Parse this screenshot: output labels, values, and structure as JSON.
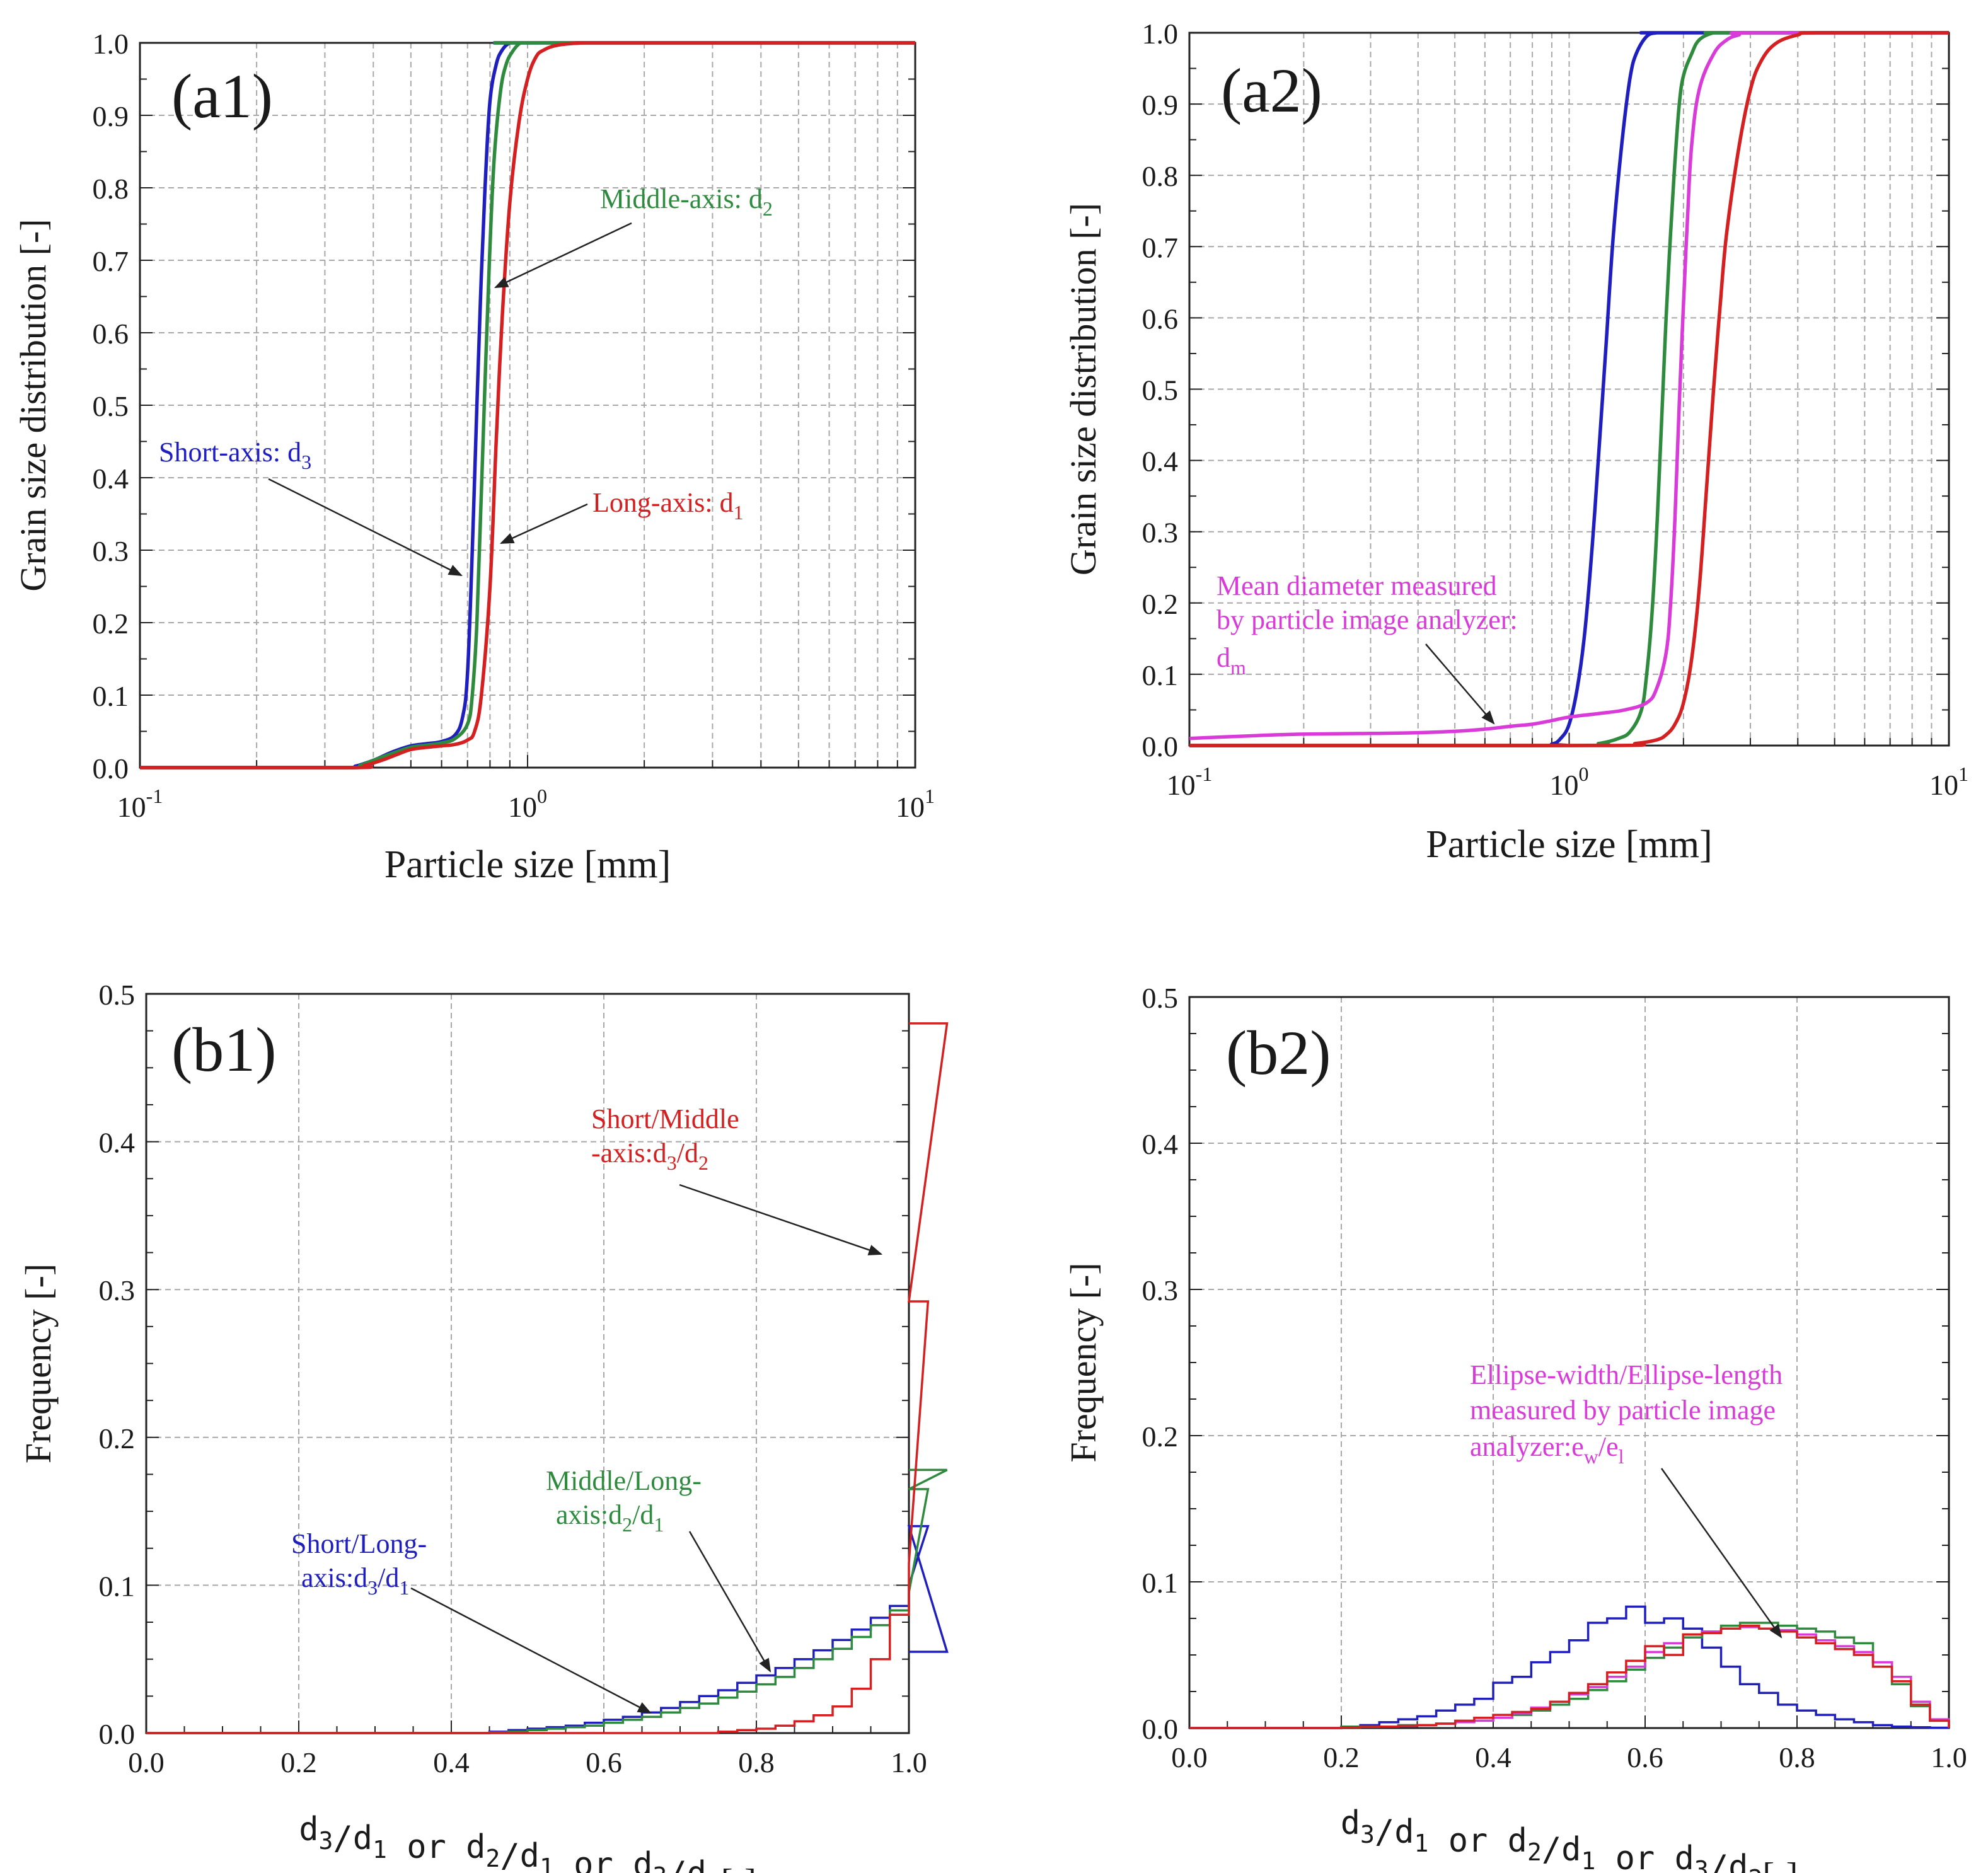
{
  "chart_data": [
    {
      "id": "a1",
      "type": "line",
      "panel_label": "(a1)",
      "xlabel": "Particle size [mm]",
      "ylabel": "Grain size distribution [-]",
      "xscale": "log",
      "xlim": [
        0.1,
        10
      ],
      "ylim": [
        0,
        1.0
      ],
      "grid": true,
      "xticks": [
        {
          "value": 0.1,
          "base": "10",
          "exp": "-1"
        },
        {
          "value": 1,
          "base": "10",
          "exp": "0"
        },
        {
          "value": 10,
          "base": "10",
          "exp": "1"
        }
      ],
      "yticks": [
        "0.0",
        "0.1",
        "0.2",
        "0.3",
        "0.4",
        "0.5",
        "0.6",
        "0.7",
        "0.8",
        "0.9",
        "1.0"
      ],
      "series": [
        {
          "name": "Short-axis: d3",
          "color": "#1f1fbf",
          "x": [
            0.1,
            0.33,
            0.36,
            0.4,
            0.45,
            0.5,
            0.55,
            0.6,
            0.65,
            0.68,
            0.7,
            0.72,
            0.74,
            0.76,
            0.78,
            0.8,
            0.83,
            0.86,
            0.9,
            0.95,
            1.0,
            10
          ],
          "y": [
            0,
            0,
            0.002,
            0.01,
            0.022,
            0.03,
            0.033,
            0.036,
            0.045,
            0.07,
            0.13,
            0.3,
            0.5,
            0.68,
            0.82,
            0.92,
            0.97,
            0.99,
            1.0,
            1.0,
            1.0,
            1.0
          ]
        },
        {
          "name": "Middle-axis: d2",
          "color": "#2e8b3e",
          "x": [
            0.1,
            0.34,
            0.37,
            0.4,
            0.45,
            0.5,
            0.55,
            0.6,
            0.65,
            0.7,
            0.72,
            0.74,
            0.76,
            0.78,
            0.8,
            0.82,
            0.85,
            0.88,
            0.92,
            0.96,
            1.0,
            10
          ],
          "y": [
            0,
            0,
            0.003,
            0.01,
            0.02,
            0.028,
            0.031,
            0.034,
            0.04,
            0.06,
            0.1,
            0.2,
            0.38,
            0.56,
            0.72,
            0.84,
            0.93,
            0.97,
            0.99,
            1.0,
            1.0,
            1.0
          ]
        },
        {
          "name": "Long-axis: d1",
          "color": "#d42020",
          "x": [
            0.1,
            0.35,
            0.38,
            0.42,
            0.46,
            0.5,
            0.55,
            0.6,
            0.65,
            0.7,
            0.73,
            0.76,
            0.8,
            0.83,
            0.86,
            0.9,
            0.95,
            1.0,
            1.05,
            1.1,
            1.2,
            1.4,
            1.6,
            10
          ],
          "y": [
            0,
            0,
            0.003,
            0.01,
            0.018,
            0.025,
            0.028,
            0.03,
            0.032,
            0.038,
            0.05,
            0.1,
            0.25,
            0.45,
            0.62,
            0.78,
            0.89,
            0.95,
            0.98,
            0.99,
            0.997,
            1.0,
            1.0,
            1.0
          ]
        }
      ],
      "annotations": [
        {
          "label": "Middle-axis: ",
          "sub": "2",
          "color": "#2e8b3e"
        },
        {
          "label": "Short-axis: ",
          "sub": "3",
          "color": "#1f1fbf"
        },
        {
          "label": "Long-axis: ",
          "sub": "1",
          "color": "#d42020"
        }
      ]
    },
    {
      "id": "a2",
      "type": "line",
      "panel_label": "(a2)",
      "xlabel": "Particle size [mm]",
      "ylabel": "Grain size distribution [-]",
      "xscale": "log",
      "xlim": [
        0.1,
        10
      ],
      "ylim": [
        0,
        1.0
      ],
      "grid": true,
      "xticks": [
        {
          "value": 0.1,
          "base": "10",
          "exp": "-1"
        },
        {
          "value": 1,
          "base": "10",
          "exp": "0"
        },
        {
          "value": 10,
          "base": "10",
          "exp": "1"
        }
      ],
      "yticks": [
        "0.0",
        "0.1",
        "0.2",
        "0.3",
        "0.4",
        "0.5",
        "0.6",
        "0.7",
        "0.8",
        "0.9",
        "1.0"
      ],
      "series": [
        {
          "color": "#1f1fbf",
          "x": [
            0.1,
            0.8,
            0.9,
            0.95,
            1.0,
            1.05,
            1.1,
            1.15,
            1.2,
            1.25,
            1.3,
            1.35,
            1.4,
            1.45,
            1.5,
            1.6,
            1.7,
            1.8,
            10
          ],
          "y": [
            0,
            0,
            0.002,
            0.01,
            0.03,
            0.08,
            0.16,
            0.28,
            0.42,
            0.56,
            0.7,
            0.8,
            0.88,
            0.94,
            0.97,
            0.995,
            1.0,
            1.0,
            1.0
          ]
        },
        {
          "color": "#2e8b3e",
          "x": [
            0.1,
            1.0,
            1.2,
            1.35,
            1.45,
            1.55,
            1.6,
            1.65,
            1.7,
            1.75,
            1.8,
            1.85,
            1.9,
            1.95,
            2.0,
            2.1,
            2.2,
            2.4,
            2.6,
            10
          ],
          "y": [
            0,
            0,
            0.003,
            0.01,
            0.02,
            0.05,
            0.1,
            0.18,
            0.3,
            0.45,
            0.6,
            0.72,
            0.82,
            0.9,
            0.94,
            0.97,
            0.99,
            1.0,
            1.0,
            1.0
          ]
        },
        {
          "color": "#d93bd9",
          "x": [
            0.1,
            0.15,
            0.2,
            0.3,
            0.4,
            0.5,
            0.6,
            0.7,
            0.8,
            0.9,
            1.0,
            1.2,
            1.4,
            1.6,
            1.7,
            1.8,
            1.85,
            1.9,
            1.95,
            2.0,
            2.05,
            2.1,
            2.2,
            2.4,
            2.6,
            2.8,
            3.0,
            10
          ],
          "y": [
            0.01,
            0.014,
            0.016,
            0.017,
            0.018,
            0.02,
            0.023,
            0.027,
            0.03,
            0.035,
            0.04,
            0.045,
            0.05,
            0.06,
            0.08,
            0.13,
            0.2,
            0.32,
            0.48,
            0.62,
            0.74,
            0.84,
            0.92,
            0.97,
            0.99,
            0.997,
            1.0,
            1.0
          ]
        },
        {
          "color": "#d42020",
          "x": [
            0.1,
            1.2,
            1.5,
            1.7,
            1.8,
            1.9,
            2.0,
            2.1,
            2.2,
            2.3,
            2.4,
            2.5,
            2.6,
            2.8,
            3.0,
            3.2,
            3.5,
            4.0,
            4.5,
            10
          ],
          "y": [
            0,
            0,
            0.003,
            0.008,
            0.015,
            0.03,
            0.06,
            0.12,
            0.22,
            0.36,
            0.5,
            0.62,
            0.72,
            0.84,
            0.92,
            0.96,
            0.985,
            0.997,
            1.0,
            1.0
          ]
        }
      ],
      "annotations": [
        {
          "lines": [
            "Mean diameter measured",
            "by particle image analyzer:"
          ],
          "sym": "d",
          "sub": "m",
          "color": "#d93bd9"
        }
      ]
    },
    {
      "id": "b1",
      "type": "step",
      "panel_label": "(b1)",
      "ylabel": "Frequency [-]",
      "xlim": [
        0,
        1.0
      ],
      "ylim": [
        0,
        0.5
      ],
      "grid": true,
      "bin_width": 0.025,
      "xticks": [
        "0.0",
        "0.2",
        "0.4",
        "0.6",
        "0.8",
        "1.0"
      ],
      "yticks": [
        "0.0",
        "0.1",
        "0.2",
        "0.3",
        "0.4",
        "0.5"
      ],
      "series": [
        {
          "name": "Short/Long-axis:d3/d1",
          "color": "#1f1fbf",
          "bin_start": 0.45,
          "values": [
            0.001,
            0.002,
            0.003,
            0.004,
            0.005,
            0.007,
            0.009,
            0.011,
            0.014,
            0.017,
            0.021,
            0.025,
            0.029,
            0.034,
            0.039,
            0.044,
            0.05,
            0.056,
            0.063,
            0.07,
            0.078,
            0.086,
            0.1,
            0.14,
            0.055
          ]
        },
        {
          "name": "Middle/Long-axis:d2/d1",
          "color": "#2e8b3e",
          "bin_start": 0.45,
          "values": [
            0.0005,
            0.001,
            0.002,
            0.003,
            0.004,
            0.005,
            0.007,
            0.009,
            0.011,
            0.014,
            0.017,
            0.02,
            0.024,
            0.028,
            0.033,
            0.038,
            0.044,
            0.05,
            0.057,
            0.065,
            0.073,
            0.083,
            0.095,
            0.165,
            0.178
          ]
        },
        {
          "name": "Short/Middle-axis:d3/d2",
          "color": "#d42020",
          "bin_start": 0.75,
          "values": [
            0.001,
            0.002,
            0.003,
            0.005,
            0.008,
            0.012,
            0.018,
            0.03,
            0.05,
            0.08,
            0.115,
            0.292,
            0.48
          ]
        }
      ],
      "annotations": [
        {
          "line1": "Short/Middle",
          "line2_pre": "-axis:",
          "color": "#d42020",
          "num_sub": "3",
          "den_sub": "2"
        },
        {
          "line1": "Middle/Long-",
          "line2_pre": "axis:",
          "color": "#2e8b3e",
          "num_sub": "2",
          "den_sub": "1"
        },
        {
          "line1": "Short/Long-",
          "line2_pre": "axis:",
          "color": "#1f1fbf",
          "num_sub": "3",
          "den_sub": "1"
        }
      ]
    },
    {
      "id": "b2",
      "type": "step",
      "panel_label": "(b2)",
      "ylabel": "Frequency [-]",
      "xlim": [
        0,
        1.0
      ],
      "ylim": [
        0,
        0.5
      ],
      "grid": true,
      "bin_width": 0.025,
      "xticks": [
        "0.0",
        "0.2",
        "0.4",
        "0.6",
        "0.8",
        "1.0"
      ],
      "yticks": [
        "0.0",
        "0.1",
        "0.2",
        "0.3",
        "0.4",
        "0.5"
      ],
      "series": [
        {
          "color": "#1f1fbf",
          "bin_start": 0.2,
          "values": [
            0.001,
            0.002,
            0.004,
            0.006,
            0.008,
            0.012,
            0.016,
            0.02,
            0.031,
            0.035,
            0.045,
            0.052,
            0.06,
            0.072,
            0.075,
            0.083,
            0.072,
            0.075,
            0.068,
            0.055,
            0.042,
            0.03,
            0.024,
            0.016,
            0.012,
            0.009,
            0.006,
            0.004,
            0.002,
            0.001,
            0.0005,
            0.0002
          ]
        },
        {
          "color": "#2e8b3e",
          "bin_start": 0.2,
          "values": [
            0.001,
            0.001,
            0.001,
            0.002,
            0.002,
            0.003,
            0.004,
            0.005,
            0.007,
            0.009,
            0.012,
            0.016,
            0.02,
            0.026,
            0.032,
            0.04,
            0.048,
            0.055,
            0.062,
            0.066,
            0.07,
            0.072,
            0.072,
            0.07,
            0.068,
            0.066,
            0.062,
            0.058,
            0.045,
            0.03,
            0.015,
            0.005
          ]
        },
        {
          "color": "#d93bd9",
          "bin_start": 0.2,
          "values": [
            0.0005,
            0.0008,
            0.001,
            0.0015,
            0.002,
            0.003,
            0.004,
            0.005,
            0.007,
            0.01,
            0.014,
            0.018,
            0.023,
            0.028,
            0.035,
            0.042,
            0.052,
            0.058,
            0.064,
            0.066,
            0.068,
            0.069,
            0.068,
            0.067,
            0.064,
            0.06,
            0.056,
            0.052,
            0.045,
            0.035,
            0.018,
            0.006
          ]
        },
        {
          "color": "#d42020",
          "bin_start": 0.2,
          "values": [
            0.0005,
            0.0008,
            0.001,
            0.0015,
            0.002,
            0.003,
            0.005,
            0.007,
            0.009,
            0.011,
            0.013,
            0.018,
            0.024,
            0.03,
            0.038,
            0.046,
            0.056,
            0.05,
            0.064,
            0.065,
            0.068,
            0.07,
            0.068,
            0.066,
            0.062,
            0.058,
            0.054,
            0.05,
            0.042,
            0.032,
            0.016,
            0.005
          ]
        }
      ],
      "annotations": [
        {
          "lines": [
            "Ellipse-width/Ellipse-length",
            "measured by particle image"
          ],
          "line3_pre": "analyzer:",
          "color": "#d93bd9",
          "num_sub": "w",
          "den_sub": "l"
        }
      ]
    }
  ]
}
